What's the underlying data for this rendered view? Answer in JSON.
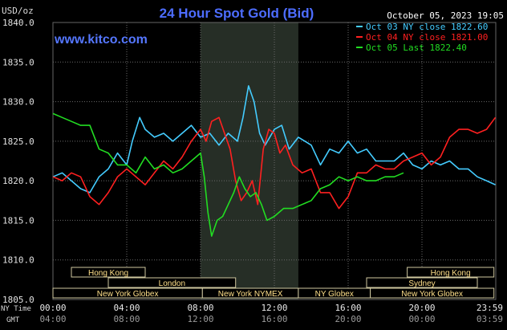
{
  "chart_data": {
    "type": "line",
    "title": "24 Hour Spot Gold (Bid)",
    "watermark": "www.kitco.com",
    "timestamp": "October 05, 2023 19:05",
    "y_unit": "USD/oz",
    "ylim": [
      1805.0,
      1840.0
    ],
    "yticks": [
      "1840.0",
      "1835.0",
      "1830.0",
      "1825.0",
      "1820.0",
      "1815.0",
      "1810.0",
      "1805.0"
    ],
    "x_row1_label": "NY Time",
    "x_row2_label": "GMT",
    "x_ticks_ny": [
      "00:00",
      "04:00",
      "08:00",
      "12:00",
      "16:00",
      "20:00",
      "23:59"
    ],
    "x_ticks_gmt": [
      "04:00",
      "08:00",
      "12:00",
      "16:00",
      "20:00",
      "00:00",
      "03:59"
    ],
    "x_range_hours": [
      0,
      24
    ],
    "grid": true,
    "shaded_period_hours": [
      8.0,
      13.3
    ],
    "legend_position": "top-right",
    "series": [
      {
        "name": "Oct 03 NY close 1822.60",
        "color": "#44ccff",
        "points": [
          [
            0.0,
            1820.5
          ],
          [
            0.5,
            1821.0
          ],
          [
            1.0,
            1820.0
          ],
          [
            1.5,
            1819.0
          ],
          [
            2.0,
            1818.5
          ],
          [
            2.5,
            1820.5
          ],
          [
            3.0,
            1821.5
          ],
          [
            3.5,
            1823.5
          ],
          [
            4.0,
            1822.0
          ],
          [
            4.3,
            1825.0
          ],
          [
            4.7,
            1828.0
          ],
          [
            5.0,
            1826.5
          ],
          [
            5.5,
            1825.5
          ],
          [
            6.0,
            1826.0
          ],
          [
            6.5,
            1825.0
          ],
          [
            7.0,
            1826.0
          ],
          [
            7.5,
            1827.0
          ],
          [
            8.0,
            1825.5
          ],
          [
            8.5,
            1826.0
          ],
          [
            9.0,
            1824.5
          ],
          [
            9.5,
            1826.0
          ],
          [
            10.0,
            1825.0
          ],
          [
            10.3,
            1828.0
          ],
          [
            10.6,
            1832.0
          ],
          [
            10.9,
            1830.0
          ],
          [
            11.2,
            1826.0
          ],
          [
            11.5,
            1824.5
          ],
          [
            12.0,
            1826.5
          ],
          [
            12.4,
            1827.0
          ],
          [
            12.8,
            1824.0
          ],
          [
            13.3,
            1825.5
          ],
          [
            14.0,
            1824.5
          ],
          [
            14.5,
            1822.0
          ],
          [
            15.0,
            1824.0
          ],
          [
            15.5,
            1823.5
          ],
          [
            16.0,
            1825.0
          ],
          [
            16.5,
            1823.5
          ],
          [
            17.0,
            1824.0
          ],
          [
            17.5,
            1822.5
          ],
          [
            18.0,
            1822.5
          ],
          [
            18.5,
            1822.5
          ],
          [
            19.0,
            1823.5
          ],
          [
            19.5,
            1822.0
          ],
          [
            20.0,
            1821.5
          ],
          [
            20.5,
            1822.5
          ],
          [
            21.0,
            1822.0
          ],
          [
            21.5,
            1822.5
          ],
          [
            22.0,
            1821.5
          ],
          [
            22.5,
            1821.5
          ],
          [
            23.0,
            1820.5
          ],
          [
            23.5,
            1820.0
          ],
          [
            23.98,
            1819.5
          ]
        ]
      },
      {
        "name": "Oct 04 NY close 1821.00",
        "color": "#ff2020",
        "points": [
          [
            0.0,
            1820.5
          ],
          [
            0.5,
            1820.0
          ],
          [
            1.0,
            1821.0
          ],
          [
            1.5,
            1820.5
          ],
          [
            2.0,
            1818.0
          ],
          [
            2.5,
            1817.0
          ],
          [
            3.0,
            1818.5
          ],
          [
            3.5,
            1820.5
          ],
          [
            4.0,
            1821.5
          ],
          [
            4.5,
            1820.5
          ],
          [
            5.0,
            1819.5
          ],
          [
            5.5,
            1821.0
          ],
          [
            6.0,
            1822.5
          ],
          [
            6.5,
            1821.5
          ],
          [
            7.0,
            1823.0
          ],
          [
            7.5,
            1825.0
          ],
          [
            8.0,
            1826.5
          ],
          [
            8.3,
            1825.0
          ],
          [
            8.6,
            1827.5
          ],
          [
            9.0,
            1828.0
          ],
          [
            9.3,
            1826.0
          ],
          [
            9.6,
            1824.0
          ],
          [
            9.9,
            1820.0
          ],
          [
            10.2,
            1817.5
          ],
          [
            10.5,
            1818.5
          ],
          [
            10.8,
            1820.0
          ],
          [
            11.1,
            1817.0
          ],
          [
            11.4,
            1824.0
          ],
          [
            11.7,
            1826.5
          ],
          [
            12.0,
            1826.0
          ],
          [
            12.3,
            1823.5
          ],
          [
            12.6,
            1824.5
          ],
          [
            13.0,
            1822.0
          ],
          [
            13.5,
            1821.0
          ],
          [
            14.0,
            1821.5
          ],
          [
            14.5,
            1818.5
          ],
          [
            15.0,
            1818.5
          ],
          [
            15.5,
            1816.5
          ],
          [
            16.0,
            1818.0
          ],
          [
            16.5,
            1821.0
          ],
          [
            17.0,
            1821.0
          ],
          [
            17.5,
            1822.0
          ],
          [
            18.0,
            1821.5
          ],
          [
            18.5,
            1821.5
          ],
          [
            19.0,
            1822.5
          ],
          [
            19.5,
            1823.0
          ],
          [
            20.0,
            1823.5
          ],
          [
            20.5,
            1822.0
          ],
          [
            21.0,
            1823.0
          ],
          [
            21.5,
            1825.5
          ],
          [
            22.0,
            1826.5
          ],
          [
            22.5,
            1826.5
          ],
          [
            23.0,
            1826.0
          ],
          [
            23.5,
            1826.5
          ],
          [
            23.98,
            1828.0
          ]
        ]
      },
      {
        "name": "Oct 05 Last 1822.40",
        "color": "#22dd22",
        "points": [
          [
            0.0,
            1828.5
          ],
          [
            0.5,
            1828.0
          ],
          [
            1.0,
            1827.5
          ],
          [
            1.5,
            1827.0
          ],
          [
            2.0,
            1827.0
          ],
          [
            2.5,
            1824.0
          ],
          [
            3.0,
            1823.5
          ],
          [
            3.5,
            1822.0
          ],
          [
            4.0,
            1822.0
          ],
          [
            4.5,
            1821.0
          ],
          [
            5.0,
            1823.0
          ],
          [
            5.5,
            1821.5
          ],
          [
            6.0,
            1822.0
          ],
          [
            6.5,
            1821.0
          ],
          [
            7.0,
            1821.5
          ],
          [
            7.5,
            1822.5
          ],
          [
            8.0,
            1823.5
          ],
          [
            8.2,
            1820.5
          ],
          [
            8.4,
            1816.0
          ],
          [
            8.6,
            1813.0
          ],
          [
            8.9,
            1815.0
          ],
          [
            9.2,
            1815.5
          ],
          [
            9.5,
            1817.0
          ],
          [
            9.8,
            1818.5
          ],
          [
            10.1,
            1820.5
          ],
          [
            10.4,
            1819.0
          ],
          [
            10.7,
            1818.0
          ],
          [
            11.0,
            1818.5
          ],
          [
            11.3,
            1817.0
          ],
          [
            11.6,
            1815.0
          ],
          [
            12.0,
            1815.5
          ],
          [
            12.5,
            1816.5
          ],
          [
            13.0,
            1816.5
          ],
          [
            13.5,
            1817.0
          ],
          [
            14.0,
            1817.5
          ],
          [
            14.5,
            1819.0
          ],
          [
            15.0,
            1819.5
          ],
          [
            15.5,
            1820.5
          ],
          [
            16.0,
            1820.0
          ],
          [
            16.5,
            1820.5
          ],
          [
            17.0,
            1820.0
          ],
          [
            17.5,
            1820.0
          ],
          [
            18.0,
            1820.5
          ],
          [
            18.5,
            1820.5
          ],
          [
            19.0,
            1821.0
          ]
        ]
      }
    ],
    "market_sessions": {
      "row1": [
        {
          "label": "Hong Kong",
          "start": 1.0,
          "end": 5.0
        },
        {
          "label": "Hong Kong",
          "start": 19.2,
          "end": 23.9
        }
      ],
      "row2": [
        {
          "label": "London",
          "start": 3.0,
          "end": 9.9
        },
        {
          "label": "Sydney",
          "start": 17.0,
          "end": 23.0
        }
      ],
      "row3": [
        {
          "label": "New York Globex",
          "start": 0.0,
          "end": 8.1
        },
        {
          "label": "New York NYMEX",
          "start": 8.1,
          "end": 13.3
        },
        {
          "label": "NY Globex",
          "start": 13.3,
          "end": 17.2
        },
        {
          "label": "New York Globex",
          "start": 17.2,
          "end": 23.9
        }
      ]
    }
  }
}
